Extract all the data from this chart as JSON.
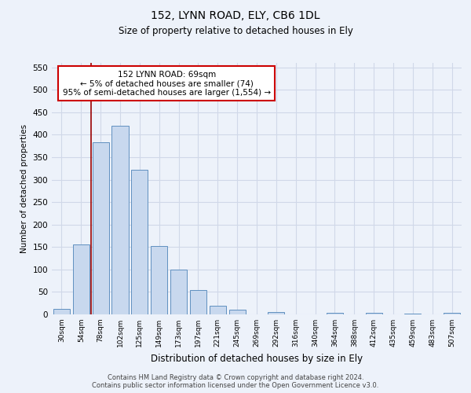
{
  "title": "152, LYNN ROAD, ELY, CB6 1DL",
  "subtitle": "Size of property relative to detached houses in Ely",
  "xlabel": "Distribution of detached houses by size in Ely",
  "ylabel": "Number of detached properties",
  "bar_color": "#c8d8ee",
  "bar_edge_color": "#6090c0",
  "categories": [
    "30sqm",
    "54sqm",
    "78sqm",
    "102sqm",
    "125sqm",
    "149sqm",
    "173sqm",
    "197sqm",
    "221sqm",
    "245sqm",
    "269sqm",
    "292sqm",
    "316sqm",
    "340sqm",
    "364sqm",
    "388sqm",
    "412sqm",
    "435sqm",
    "459sqm",
    "483sqm",
    "507sqm"
  ],
  "values": [
    13,
    155,
    383,
    420,
    322,
    152,
    100,
    55,
    19,
    11,
    0,
    5,
    0,
    0,
    4,
    0,
    3,
    0,
    2,
    0,
    4
  ],
  "ylim": [
    0,
    560
  ],
  "yticks": [
    0,
    50,
    100,
    150,
    200,
    250,
    300,
    350,
    400,
    450,
    500,
    550
  ],
  "vline_x": 1.5,
  "vline_color": "#990000",
  "annotation_text": "152 LYNN ROAD: 69sqm\n← 5% of detached houses are smaller (74)\n95% of semi-detached houses are larger (1,554) →",
  "annotation_box_color": "#ffffff",
  "annotation_box_edge": "#cc0000",
  "footer_line1": "Contains HM Land Registry data © Crown copyright and database right 2024.",
  "footer_line2": "Contains public sector information licensed under the Open Government Licence v3.0.",
  "background_color": "#edf2fa",
  "grid_color": "#d0d8e8"
}
